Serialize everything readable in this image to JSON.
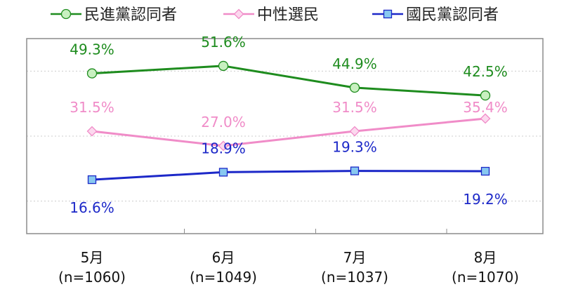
{
  "chart_data": {
    "type": "line",
    "categories": [
      "5月",
      "6月",
      "7月",
      "8月"
    ],
    "category_sublabels": [
      "(n=1060)",
      "(n=1049)",
      "(n=1037)",
      "(n=1070)"
    ],
    "series": [
      {
        "name": "民進黨認同者",
        "values": [
          49.3,
          51.6,
          44.9,
          42.5
        ],
        "labels": [
          "49.3%",
          "51.6%",
          "44.9%",
          "42.5%"
        ],
        "color": "#1e8c1e",
        "marker": "circle",
        "marker_fill": "#c8f0c0"
      },
      {
        "name": "中性選民",
        "values": [
          31.5,
          27.0,
          31.5,
          35.4
        ],
        "labels": [
          "31.5%",
          "27.0%",
          "31.5%",
          "35.4%"
        ],
        "color": "#f08cc8",
        "marker": "diamond",
        "marker_fill": "#fcd8ee"
      },
      {
        "name": "國民黨認同者",
        "values": [
          16.6,
          18.9,
          19.3,
          19.2
        ],
        "labels": [
          "16.6%",
          "18.9%",
          "19.3%",
          "19.2%"
        ],
        "color": "#1c28c8",
        "marker": "square",
        "marker_fill": "#88c8f0"
      }
    ],
    "title": "",
    "xlabel": "",
    "ylabel": "",
    "ylim": [
      0,
      60
    ],
    "grid": true,
    "legend_position": "top"
  }
}
